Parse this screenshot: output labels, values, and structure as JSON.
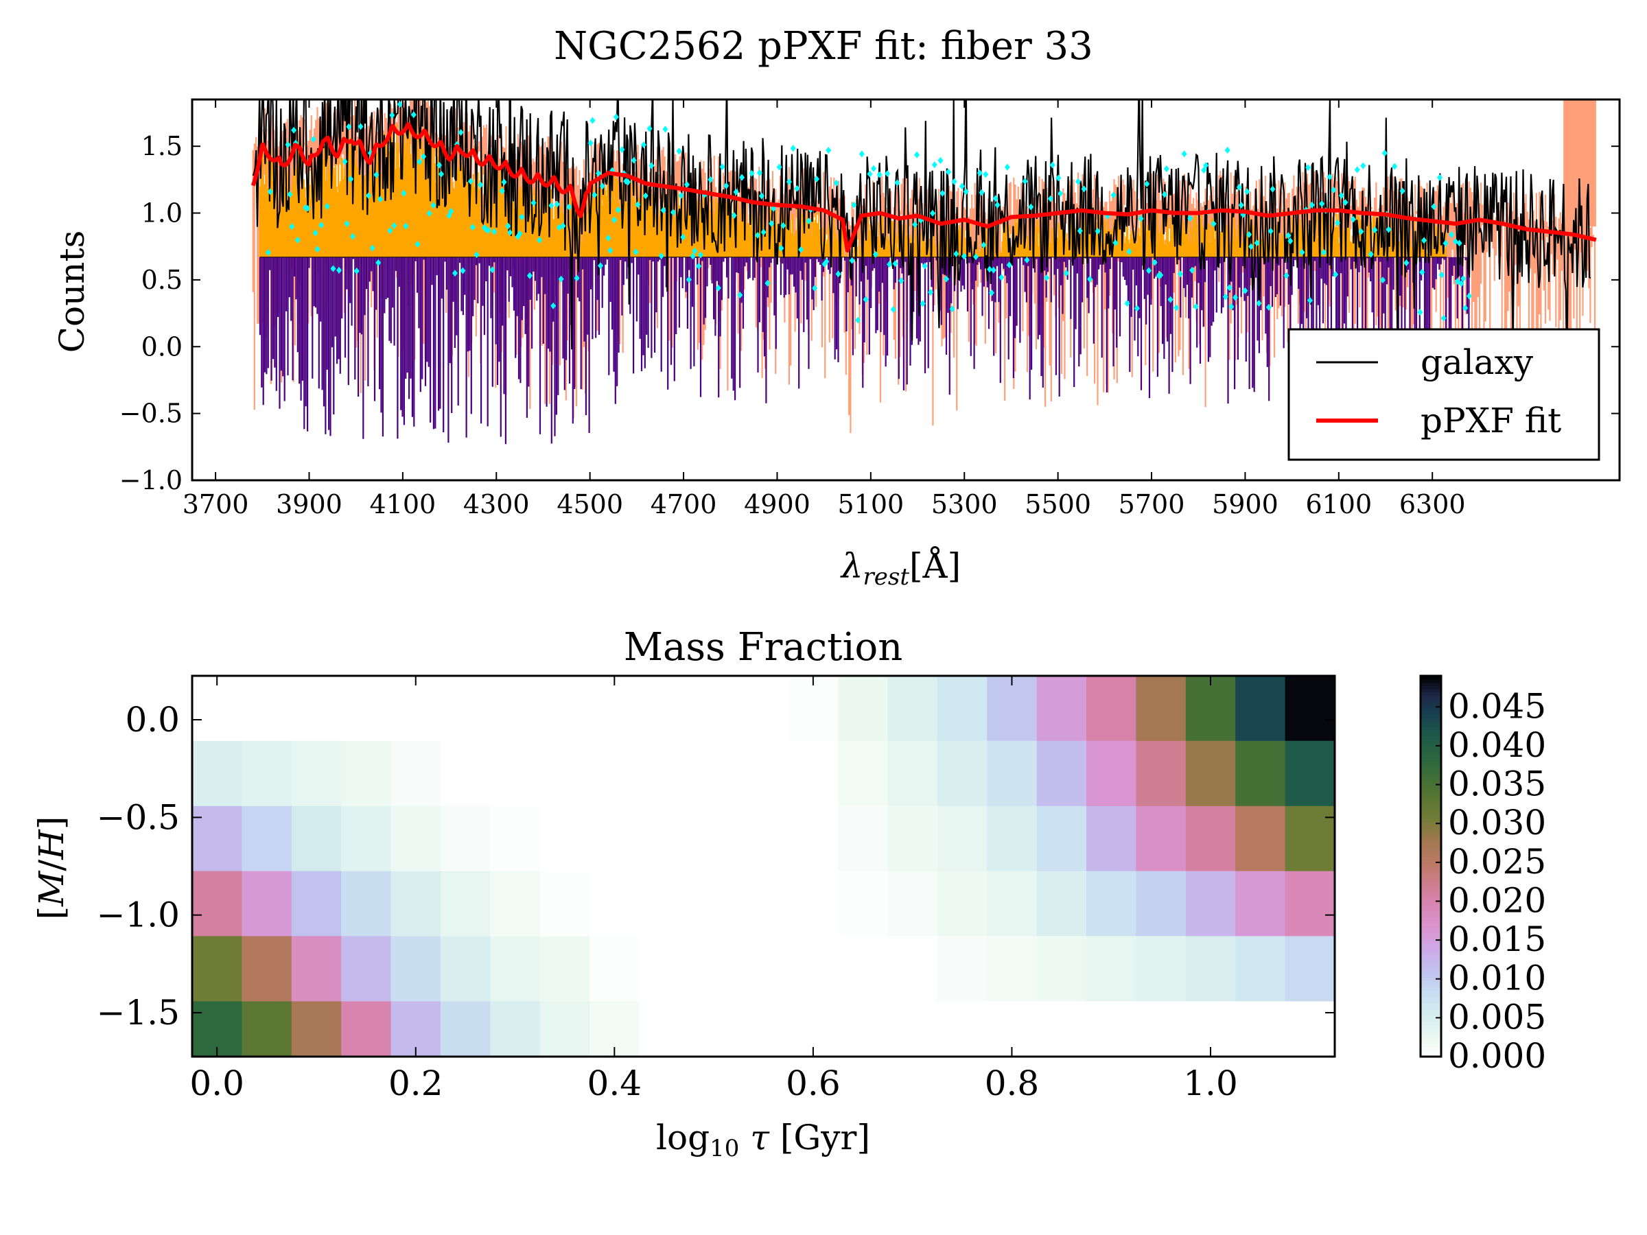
{
  "figure": {
    "title": "NGC2562 pPXF fit: fiber 33"
  },
  "chart_data": [
    {
      "type": "line",
      "title": "NGC2562 pPXF fit: fiber 33",
      "xlabel": "λrest[Å]",
      "ylabel": "Counts",
      "xlim": [
        3650,
        6700
      ],
      "ylim": [
        -1.0,
        1.85
      ],
      "xticks": [
        "3700",
        "3900",
        "4100",
        "4300",
        "4500",
        "4700",
        "4900",
        "5100",
        "5300",
        "5500",
        "5700",
        "5900",
        "6100",
        "6300"
      ],
      "yticks": [
        "1.5",
        "1.0",
        "0.5",
        "0.0",
        "−0.5",
        "−1.0"
      ],
      "legend": {
        "position": "lower-right",
        "entries": [
          "galaxy",
          "pPXF fit"
        ]
      },
      "series": [
        {
          "name": "galaxy",
          "color": "#000000",
          "note_visual": "noisy spectrum"
        },
        {
          "name": "pPXF fit",
          "color": "#ff0000",
          "x": [
            3780,
            3800,
            3820,
            3840,
            3880,
            3900,
            3930,
            3960,
            3990,
            4030,
            4060,
            4080,
            4100,
            4130,
            4160,
            4200,
            4230,
            4260,
            4300,
            4340,
            4380,
            4420,
            4460,
            4480,
            4500,
            4540,
            4580,
            4620,
            4660,
            4700,
            4750,
            4800,
            4850,
            4900,
            4950,
            5000,
            5040,
            5050,
            5080,
            5120,
            5160,
            5200,
            5250,
            5300,
            5350,
            5400,
            5450,
            5500,
            5550,
            5600,
            5650,
            5700,
            5750,
            5800,
            5850,
            5900,
            5950,
            6000,
            6050,
            6100,
            6150,
            6200,
            6250,
            6300,
            6350,
            6400,
            6450,
            6500,
            6550,
            6600,
            6650,
            6700
          ],
          "y": [
            1.28,
            1.52,
            1.48,
            1.4,
            1.55,
            1.4,
            1.6,
            1.5,
            1.62,
            1.45,
            1.6,
            1.66,
            1.68,
            1.65,
            1.6,
            1.48,
            1.52,
            1.45,
            1.42,
            1.35,
            1.3,
            1.28,
            1.2,
            1.05,
            1.22,
            1.3,
            1.28,
            1.22,
            1.2,
            1.18,
            1.15,
            1.12,
            1.08,
            1.06,
            1.05,
            1.02,
            0.95,
            0.72,
            0.98,
            1.0,
            0.96,
            0.98,
            0.92,
            0.95,
            0.9,
            0.97,
            0.98,
            1.0,
            1.02,
            1.0,
            0.99,
            1.02,
            1.0,
            1.0,
            1.02,
            1.01,
            0.98,
            1.0,
            1.02,
            1.02,
            1.0,
            0.99,
            0.96,
            0.94,
            0.92,
            0.95,
            0.92,
            0.88,
            0.86,
            0.84,
            0.8,
            0.75
          ]
        }
      ],
      "colors": {
        "fill_above": "#ffa500",
        "fill_below": "#4b0082",
        "residual": "#ffa07a",
        "markers": "#00ffff"
      }
    },
    {
      "type": "heatmap",
      "title": "Mass Fraction",
      "xlabel": "log10 τ [Gyr]",
      "ylabel": "[M/H]",
      "xlim": [
        -0.025,
        1.125
      ],
      "ylim": [
        -1.725,
        0.225
      ],
      "xticks": [
        "0.0",
        "0.2",
        "0.4",
        "0.6",
        "0.8",
        "1.0"
      ],
      "yticks": [
        "0.0",
        "−0.5",
        "−1.0",
        "−1.5"
      ],
      "x_centers": [
        0.0,
        0.05,
        0.1,
        0.15,
        0.2,
        0.25,
        0.3,
        0.35,
        0.4,
        0.45,
        0.5,
        0.55,
        0.6,
        0.65,
        0.7,
        0.75,
        0.8,
        0.85,
        0.9,
        0.95,
        1.0,
        1.05,
        1.1
      ],
      "y_centers": [
        0.0,
        -0.33,
        -0.67,
        -1.0,
        -1.33,
        -1.67
      ],
      "values": [
        [
          0,
          0,
          0,
          0,
          0,
          0,
          0,
          0,
          0,
          0,
          0,
          0,
          0.0005,
          0.0025,
          0.0045,
          0.0065,
          0.0105,
          0.0155,
          0.0205,
          0.0275,
          0.0355,
          0.0435,
          0.0485
        ],
        [
          0.005,
          0.004,
          0.003,
          0.002,
          0.001,
          0,
          0,
          0,
          0,
          0,
          0,
          0,
          0,
          0.0015,
          0.003,
          0.005,
          0.007,
          0.0115,
          0.0165,
          0.022,
          0.0285,
          0.0355,
          0.041
        ],
        [
          0.012,
          0.009,
          0.006,
          0.004,
          0.002,
          0.001,
          0.0005,
          0,
          0,
          0,
          0,
          0,
          0,
          0.001,
          0.002,
          0.003,
          0.005,
          0.0075,
          0.0125,
          0.0175,
          0.021,
          0.0255,
          0.031
        ],
        [
          0.021,
          0.016,
          0.011,
          0.008,
          0.005,
          0.003,
          0.0015,
          0.0005,
          0,
          0,
          0,
          0,
          0,
          0.0005,
          0.001,
          0.002,
          0.003,
          0.005,
          0.0075,
          0.0095,
          0.0125,
          0.016,
          0.019
        ],
        [
          0.031,
          0.026,
          0.018,
          0.012,
          0.008,
          0.005,
          0.003,
          0.002,
          0.0005,
          0,
          0,
          0,
          0,
          0,
          0.0003,
          0.001,
          0.0015,
          0.002,
          0.003,
          0.004,
          0.005,
          0.0065,
          0.0085
        ],
        [
          0.038,
          0.033,
          0.027,
          0.02,
          0.012,
          0.008,
          0.005,
          0.003,
          0.0015,
          0,
          0,
          0,
          0,
          0,
          0,
          0,
          0,
          0,
          0,
          0,
          0,
          0,
          0
        ]
      ],
      "colorbar": {
        "min": 0.0,
        "max": 0.049,
        "ticks": [
          "0.000",
          "0.005",
          "0.010",
          "0.015",
          "0.020",
          "0.025",
          "0.030",
          "0.035",
          "0.040",
          "0.045"
        ],
        "colormap": "cubehelix_r"
      }
    }
  ]
}
